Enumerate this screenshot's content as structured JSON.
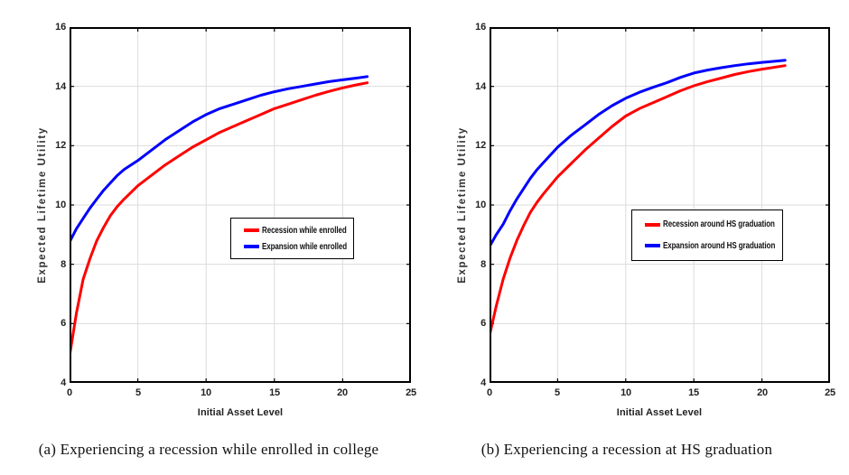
{
  "figure": {
    "background": "#ffffff",
    "axis_color": "#000000",
    "grid_color": "#dcdcdc",
    "tick_label_color": "#222222",
    "red": "#ff0000",
    "blue": "#0000ff"
  },
  "chart_data": [
    {
      "type": "line",
      "panel": "a",
      "xlabel": "Initial Asset Level",
      "ylabel": "Expected Lifetime Utility",
      "xlim": [
        0,
        25
      ],
      "ylim": [
        4,
        16
      ],
      "xticks": [
        0,
        5,
        10,
        15,
        20,
        25
      ],
      "yticks": [
        4,
        6,
        8,
        10,
        12,
        14,
        16
      ],
      "grid": true,
      "legend_position": "center-right",
      "caption": "(a) Experiencing a recession while enrolled in college",
      "series": [
        {
          "name": "Recession while enrolled",
          "color": "#ff0000",
          "x": [
            0,
            0.5,
            1,
            1.5,
            2,
            2.5,
            3,
            3.5,
            4,
            5,
            6,
            7,
            8,
            9,
            10,
            11,
            12,
            13,
            14,
            15,
            16,
            17,
            18,
            19,
            20,
            21,
            21.8
          ],
          "y": [
            4.9,
            6.35,
            7.5,
            8.2,
            8.8,
            9.25,
            9.65,
            9.95,
            10.2,
            10.65,
            11.0,
            11.35,
            11.65,
            11.95,
            12.2,
            12.45,
            12.65,
            12.85,
            13.05,
            13.25,
            13.4,
            13.55,
            13.7,
            13.83,
            13.95,
            14.05,
            14.12
          ]
        },
        {
          "name": "Expansion while enrolled",
          "color": "#0000ff",
          "x": [
            0,
            0.5,
            1,
            1.5,
            2,
            2.5,
            3,
            3.5,
            4,
            5,
            6,
            7,
            8,
            9,
            10,
            11,
            12,
            13,
            14,
            15,
            16,
            17,
            18,
            19,
            20,
            21,
            21.8
          ],
          "y": [
            8.75,
            9.2,
            9.55,
            9.9,
            10.2,
            10.5,
            10.75,
            11.0,
            11.2,
            11.5,
            11.85,
            12.2,
            12.5,
            12.8,
            13.05,
            13.25,
            13.4,
            13.55,
            13.7,
            13.82,
            13.92,
            14.0,
            14.08,
            14.16,
            14.22,
            14.28,
            14.33
          ]
        }
      ]
    },
    {
      "type": "line",
      "panel": "b",
      "xlabel": "Initial Asset Level",
      "ylabel": "Expected Lifetime Utility",
      "xlim": [
        0,
        25
      ],
      "ylim": [
        4,
        16
      ],
      "xticks": [
        0,
        5,
        10,
        15,
        20,
        25
      ],
      "yticks": [
        4,
        6,
        8,
        10,
        12,
        14,
        16
      ],
      "grid": true,
      "legend_position": "center-right",
      "caption": "(b) Experiencing a recession at HS graduation",
      "series": [
        {
          "name": "Recession around HS graduation",
          "color": "#ff0000",
          "x": [
            0,
            0.5,
            1,
            1.5,
            2,
            2.5,
            3,
            3.5,
            4,
            5,
            6,
            7,
            8,
            9,
            10,
            11,
            12,
            13,
            14,
            15,
            16,
            17,
            18,
            19,
            20,
            21,
            21.7
          ],
          "y": [
            5.6,
            6.6,
            7.5,
            8.2,
            8.8,
            9.3,
            9.75,
            10.1,
            10.4,
            10.95,
            11.4,
            11.85,
            12.25,
            12.65,
            13.0,
            13.25,
            13.45,
            13.65,
            13.85,
            14.02,
            14.16,
            14.28,
            14.4,
            14.5,
            14.58,
            14.65,
            14.7
          ]
        },
        {
          "name": "Expansion around HS graduation",
          "color": "#0000ff",
          "x": [
            0,
            0.5,
            1,
            1.5,
            2,
            2.5,
            3,
            3.5,
            4,
            5,
            6,
            7,
            8,
            9,
            10,
            11,
            12,
            13,
            14,
            15,
            16,
            17,
            18,
            19,
            20,
            21,
            21.7
          ],
          "y": [
            8.6,
            9.0,
            9.35,
            9.8,
            10.2,
            10.55,
            10.9,
            11.2,
            11.45,
            11.95,
            12.35,
            12.7,
            13.05,
            13.35,
            13.6,
            13.8,
            13.97,
            14.12,
            14.3,
            14.45,
            14.55,
            14.63,
            14.7,
            14.76,
            14.81,
            14.85,
            14.88
          ]
        }
      ]
    }
  ]
}
